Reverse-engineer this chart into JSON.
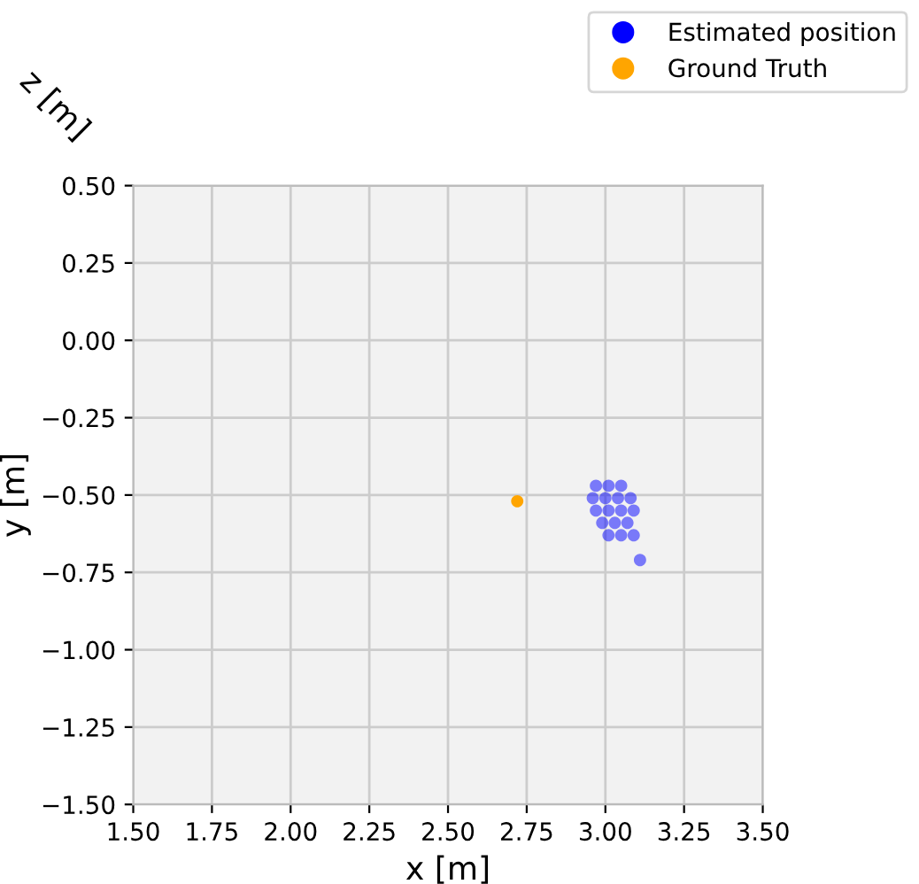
{
  "chart_data": {
    "type": "scatter",
    "xlabel": "x [m]",
    "ylabel": "y [m]",
    "annotations": [
      "z [m]"
    ],
    "xlim": [
      1.5,
      3.5
    ],
    "ylim": [
      -1.5,
      0.5
    ],
    "xticks": [
      {
        "value": 1.5,
        "label": "1.50"
      },
      {
        "value": 1.75,
        "label": "1.75"
      },
      {
        "value": 2.0,
        "label": "2.00"
      },
      {
        "value": 2.25,
        "label": "2.25"
      },
      {
        "value": 2.5,
        "label": "2.50"
      },
      {
        "value": 2.75,
        "label": "2.75"
      },
      {
        "value": 3.0,
        "label": "3.00"
      },
      {
        "value": 3.25,
        "label": "3.25"
      },
      {
        "value": 3.5,
        "label": "3.50"
      }
    ],
    "yticks": [
      {
        "value": -1.5,
        "label": "−1.50"
      },
      {
        "value": -1.25,
        "label": "−1.25"
      },
      {
        "value": -1.0,
        "label": "−1.00"
      },
      {
        "value": -0.75,
        "label": "−0.75"
      },
      {
        "value": -0.5,
        "label": "−0.50"
      },
      {
        "value": -0.25,
        "label": "−0.25"
      },
      {
        "value": 0.0,
        "label": "0.00"
      },
      {
        "value": 0.25,
        "label": "0.25"
      },
      {
        "value": 0.5,
        "label": "0.50"
      }
    ],
    "grid": true,
    "legend": "top right",
    "marker": "circle",
    "series": [
      {
        "name": "Estimated position",
        "color": "#0000ff",
        "x": [
          2.97,
          3.01,
          3.05,
          2.96,
          3.0,
          3.04,
          3.08,
          2.97,
          3.01,
          3.05,
          3.09,
          2.99,
          3.03,
          3.07,
          3.01,
          3.05,
          3.09,
          3.11
        ],
        "values": [
          -0.47,
          -0.47,
          -0.47,
          -0.51,
          -0.51,
          -0.51,
          -0.51,
          -0.55,
          -0.55,
          -0.55,
          -0.55,
          -0.59,
          -0.59,
          -0.59,
          -0.63,
          -0.63,
          -0.63,
          -0.71
        ]
      },
      {
        "name": "Ground Truth",
        "color": "#ffa500",
        "x": [
          2.72
        ],
        "values": [
          -0.52
        ]
      }
    ]
  }
}
